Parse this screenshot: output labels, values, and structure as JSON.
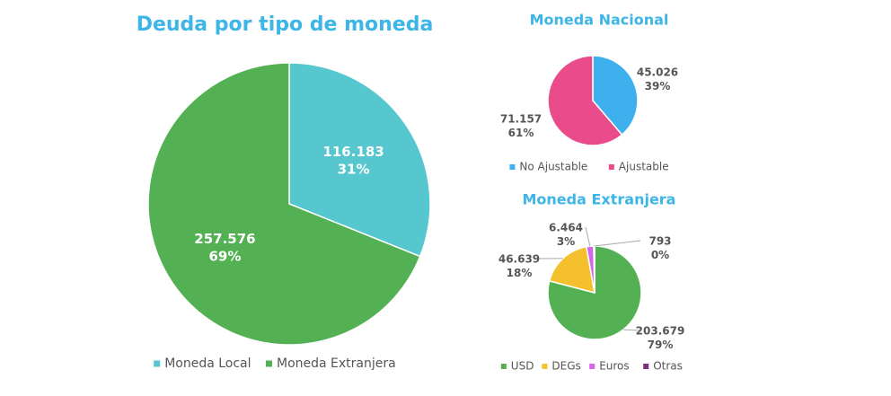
{
  "chart_data": [
    {
      "type": "pie",
      "title": "Deuda por tipo de moneda",
      "categories": [
        "Moneda Local",
        "Moneda Extranjera"
      ],
      "values": [
        116183,
        257576
      ],
      "value_labels": [
        "116.183",
        "257.576"
      ],
      "percent_labels": [
        "31%",
        "69%"
      ],
      "colors": [
        "#56c7cf",
        "#53b153"
      ]
    },
    {
      "type": "pie",
      "title": "Moneda Nacional",
      "categories": [
        "No Ajustable",
        "Ajustable"
      ],
      "values": [
        45026,
        71157
      ],
      "value_labels": [
        "45.026",
        "71.157"
      ],
      "percent_labels": [
        "39%",
        "61%"
      ],
      "colors": [
        "#3fb0ee",
        "#ea4b8b"
      ]
    },
    {
      "type": "pie",
      "title": "Moneda Extranjera",
      "categories": [
        "USD",
        "DEGs",
        "Euros",
        "Otras"
      ],
      "values": [
        203679,
        46639,
        6464,
        793
      ],
      "value_labels": [
        "203.679",
        "46.639",
        "6.464",
        "793"
      ],
      "percent_labels": [
        "79%",
        "18%",
        "3%",
        "0%"
      ],
      "colors": [
        "#53b153",
        "#f4c02e",
        "#d466e8",
        "#7a2f7a"
      ]
    }
  ]
}
